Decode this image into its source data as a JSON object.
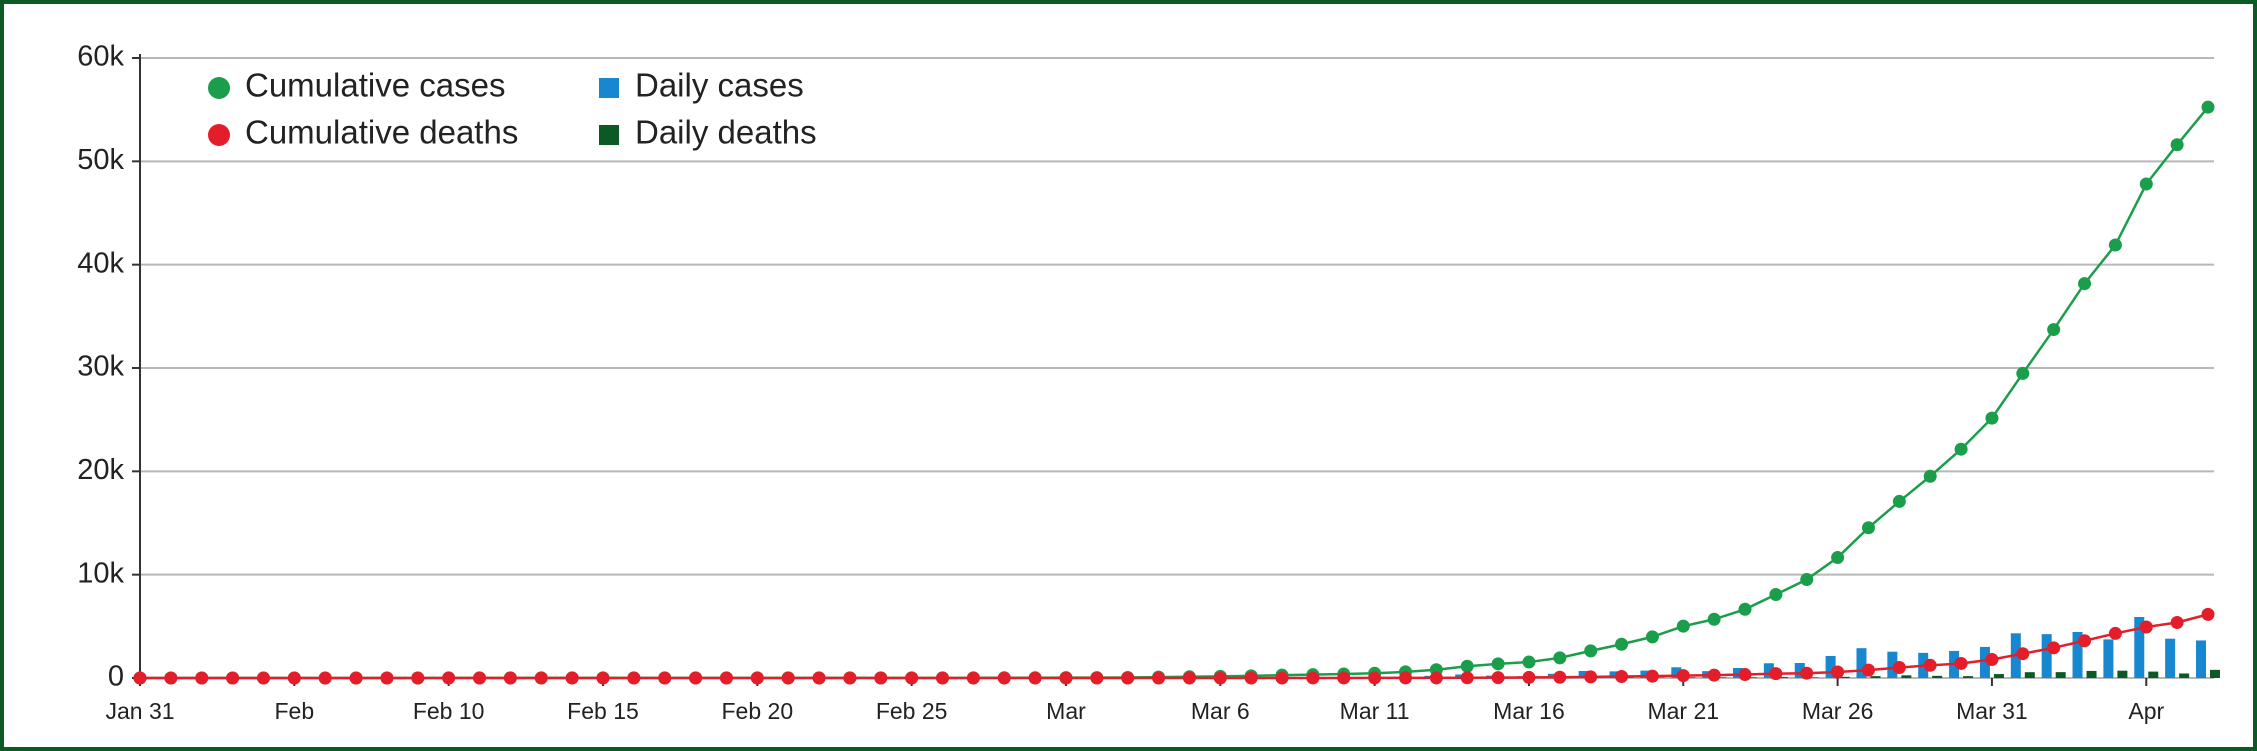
{
  "chart_data": {
    "type": "combo",
    "categories": [
      "Jan 31",
      null,
      null,
      null,
      null,
      "Feb",
      null,
      null,
      null,
      null,
      "Feb 10",
      null,
      null,
      null,
      null,
      "Feb 15",
      null,
      null,
      null,
      null,
      "Feb 20",
      null,
      null,
      null,
      null,
      "Feb 25",
      null,
      null,
      null,
      null,
      "Mar",
      null,
      null,
      null,
      null,
      "Mar 6",
      null,
      null,
      null,
      null,
      "Mar 11",
      null,
      null,
      null,
      null,
      "Mar 16",
      null,
      null,
      null,
      null,
      "Mar 21",
      null,
      null,
      null,
      null,
      "Mar 26",
      null,
      null,
      null,
      null,
      "Mar 31",
      null,
      null,
      null,
      null,
      "Apr",
      null,
      null
    ],
    "series": [
      {
        "name": "Cumulative cases",
        "type": "line",
        "color": "#1a9e4b",
        "values": [
          2,
          2,
          2,
          2,
          2,
          2,
          2,
          2,
          2,
          2,
          8,
          8,
          9,
          9,
          9,
          9,
          9,
          9,
          9,
          9,
          9,
          9,
          13,
          13,
          13,
          13,
          13,
          15,
          20,
          23,
          36,
          40,
          51,
          85,
          115,
          163,
          206,
          273,
          321,
          382,
          456,
          590,
          798,
          1140,
          1372,
          1543,
          1950,
          2626,
          3269,
          3983,
          5018,
          5683,
          6650,
          8077,
          9529,
          11658,
          14543,
          17089,
          19522,
          22141,
          25150,
          29474,
          33718,
          38168,
          41903,
          47806,
          51608,
          55242
        ]
      },
      {
        "name": "Cumulative deaths",
        "type": "line",
        "color": "#e31e2a",
        "values": [
          0,
          0,
          0,
          0,
          0,
          0,
          0,
          0,
          0,
          0,
          0,
          0,
          0,
          0,
          0,
          0,
          0,
          0,
          0,
          0,
          0,
          0,
          0,
          0,
          0,
          0,
          0,
          0,
          0,
          0,
          0,
          0,
          0,
          0,
          1,
          2,
          2,
          3,
          4,
          6,
          8,
          8,
          8,
          21,
          35,
          55,
          71,
          104,
          144,
          177,
          233,
          281,
          335,
          422,
          465,
          578,
          759,
          1019,
          1228,
          1408,
          1789,
          2352,
          2921,
          3605,
          4313,
          4934,
          5373,
          6159
        ]
      },
      {
        "name": "Daily cases",
        "type": "bar",
        "color": "#1787d0",
        "values": [
          0,
          0,
          0,
          0,
          0,
          0,
          0,
          0,
          0,
          0,
          6,
          0,
          1,
          0,
          0,
          0,
          0,
          0,
          0,
          0,
          0,
          0,
          4,
          0,
          0,
          0,
          0,
          2,
          5,
          3,
          13,
          4,
          11,
          34,
          30,
          48,
          43,
          67,
          48,
          61,
          74,
          134,
          208,
          342,
          232,
          171,
          407,
          676,
          643,
          714,
          1035,
          665,
          967,
          1427,
          1452,
          2129,
          2885,
          2546,
          2433,
          2619,
          3009,
          4324,
          4244,
          4450,
          3735,
          5903,
          3802,
          3634
        ]
      },
      {
        "name": "Daily deaths",
        "type": "bar",
        "color": "#0b5a26",
        "values": [
          0,
          0,
          0,
          0,
          0,
          0,
          0,
          0,
          0,
          0,
          0,
          0,
          0,
          0,
          0,
          0,
          0,
          0,
          0,
          0,
          0,
          0,
          0,
          0,
          0,
          0,
          0,
          0,
          0,
          0,
          0,
          0,
          0,
          0,
          1,
          1,
          0,
          1,
          1,
          2,
          2,
          0,
          0,
          13,
          14,
          20,
          16,
          33,
          40,
          33,
          56,
          48,
          54,
          87,
          43,
          113,
          181,
          260,
          209,
          180,
          381,
          563,
          569,
          684,
          708,
          621,
          439,
          786
        ]
      }
    ],
    "ylim": [
      0,
      60000
    ],
    "yticks": [
      0,
      {
        "value": 10000,
        "label": "10k"
      },
      {
        "value": 20000,
        "label": "20k"
      },
      {
        "value": 30000,
        "label": "30k"
      },
      {
        "value": 40000,
        "label": "40k"
      },
      {
        "value": 50000,
        "label": "50k"
      },
      {
        "value": 60000,
        "label": "60k"
      }
    ],
    "grid": true,
    "legend": "top-left"
  }
}
